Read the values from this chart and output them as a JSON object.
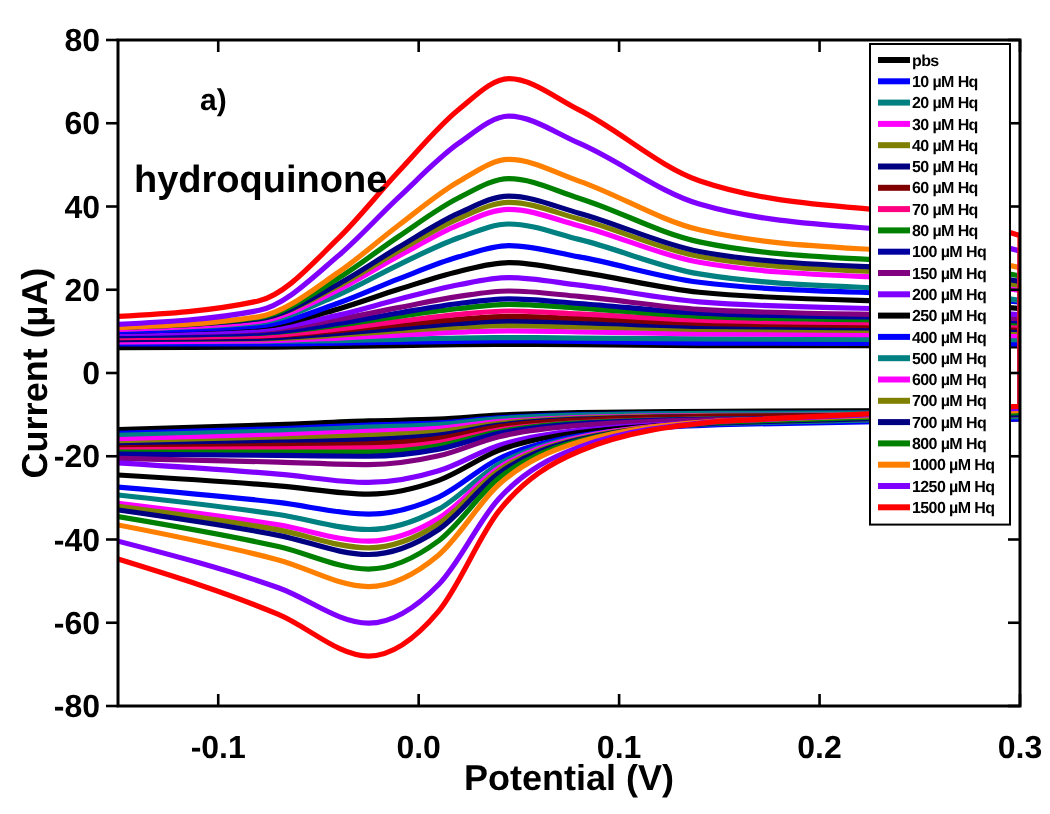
{
  "chart_data": {
    "type": "line",
    "xlabel": "Potential (V)",
    "ylabel": "Current (µA)",
    "annotations": [
      "a)",
      "hydroquinone"
    ],
    "xlim": [
      -0.15,
      0.3
    ],
    "ylim": [
      -80,
      80
    ],
    "xticks": [
      {
        "value": -0.1,
        "label": "-0.1"
      },
      {
        "value": 0,
        "label": "0.0"
      },
      {
        "value": 0.1,
        "label": "0.1"
      },
      {
        "value": 0.2,
        "label": "0.2"
      },
      {
        "value": 0.3,
        "label": "0.3"
      }
    ],
    "yticks": [
      -80,
      -60,
      -40,
      -20,
      0,
      20,
      40,
      60,
      80
    ],
    "grid": false,
    "legend": "top right",
    "marker": "none",
    "line_style": "solid",
    "x": [
      -0.15,
      -0.08,
      -0.04,
      -0.01,
      0.02,
      0.045,
      0.08,
      0.14,
      0.3,
      0.3,
      0.15,
      0.08,
      0.04,
      0.01,
      -0.025,
      -0.07,
      -0.15
    ],
    "series": [
      {
        "name": "pbs",
        "color": "#000000",
        "values": [
          6.1,
          6.2,
          6.4,
          6.6,
          6.8,
          6.9,
          6.8,
          6.6,
          6.5,
          -9,
          -9.2,
          -9.5,
          -10.1,
          -11.1,
          -11.5,
          -12.4,
          -13.6
        ]
      },
      {
        "name": "10 µM Hq",
        "color": "#0000ff",
        "values": [
          7,
          7,
          7.2,
          7.4,
          7.6,
          7.7,
          7.6,
          7.2,
          7,
          -9.5,
          -9.7,
          -10,
          -10.8,
          -12,
          -12.5,
          -13.4,
          -14.5
        ]
      },
      {
        "name": "20 µM Hq",
        "color": "#008080",
        "values": [
          7.5,
          7.6,
          7.8,
          8.1,
          8.4,
          8.5,
          8.4,
          8.2,
          8,
          -9.5,
          -9.7,
          -10.1,
          -11,
          -12.4,
          -13,
          -13.9,
          -15
        ]
      },
      {
        "name": "30 µM Hq",
        "color": "#ff00ff",
        "values": [
          7.5,
          7.7,
          8.4,
          9.1,
          9.8,
          10.1,
          9.9,
          9.4,
          9,
          -10,
          -10.2,
          -10.7,
          -11.7,
          -13.3,
          -14,
          -14.9,
          -16
        ]
      },
      {
        "name": "40 µM Hq",
        "color": "#808000",
        "values": [
          8,
          8.2,
          9.1,
          10.1,
          11,
          11.4,
          11.1,
          10.5,
          10,
          -10,
          -10.3,
          -10.9,
          -12.1,
          -14.1,
          -15,
          -15.9,
          -17
        ]
      },
      {
        "name": "50 µM Hq",
        "color": "#000080",
        "values": [
          8,
          8.3,
          9.5,
          10.7,
          11.9,
          12.5,
          12.1,
          11.2,
          10.5,
          -10,
          -10.4,
          -11.1,
          -12.5,
          -14.9,
          -16,
          -16.6,
          -17.5
        ]
      },
      {
        "name": "60 µM Hq",
        "color": "#800000",
        "values": [
          8.5,
          8.8,
          10.2,
          11.6,
          12.9,
          13.6,
          13.1,
          11.9,
          11,
          -10,
          -10.4,
          -11.3,
          -12.9,
          -15.7,
          -17,
          -17.4,
          -18
        ]
      },
      {
        "name": "70 µM Hq",
        "color": "#ff0080",
        "values": [
          8.5,
          8.9,
          10.6,
          12.4,
          14.1,
          14.9,
          14.2,
          12.7,
          11.5,
          -10.5,
          -11,
          -11.9,
          -13.7,
          -16.7,
          -18,
          -18.2,
          -18.5
        ]
      },
      {
        "name": "80 µM Hq",
        "color": "#008000",
        "values": [
          9,
          9.5,
          11.5,
          13.6,
          15.5,
          16.5,
          15.6,
          13.6,
          12,
          -10.5,
          -11,
          -12,
          -14.1,
          -17.5,
          -19,
          -19,
          -19
        ]
      },
      {
        "name": "100 µM Hq",
        "color": "#0000a0",
        "values": [
          9,
          9.6,
          11.9,
          14.4,
          16.7,
          17.8,
          16.7,
          14.4,
          12.5,
          -10.5,
          -11.1,
          -12.2,
          -14.5,
          -18.3,
          -20,
          -19.8,
          -19.5
        ]
      },
      {
        "name": "150 µM Hq",
        "color": "#800080",
        "values": [
          9.5,
          10.2,
          12.9,
          15.7,
          18.4,
          19.7,
          18.4,
          15.3,
          13,
          -10.5,
          -11.2,
          -12.6,
          -15.3,
          -19.9,
          -22,
          -21.4,
          -20.5
        ]
      },
      {
        "name": "200 µM Hq",
        "color": "#8000ff",
        "values": [
          9.5,
          10.4,
          13.9,
          17.7,
          21.2,
          22.9,
          21.1,
          17.1,
          14,
          -11,
          -11.9,
          -13.8,
          -17.4,
          -23.5,
          -26.3,
          -24.3,
          -21.6
        ]
      },
      {
        "name": "250 µM Hq",
        "color": "#000000",
        "values": [
          10,
          11.1,
          15.4,
          20.1,
          24.4,
          26.5,
          24.3,
          19.4,
          15.5,
          -11,
          -12.1,
          -14.3,
          -18.6,
          -25.8,
          -29.1,
          -27.1,
          -24.5
        ]
      },
      {
        "name": "400 µM Hq",
        "color": "#0000ff",
        "values": [
          10,
          11.3,
          16.8,
          22.6,
          27.9,
          30.6,
          27.9,
          21.8,
          17,
          -11,
          -12.4,
          -15.1,
          -20.6,
          -29.8,
          -33.9,
          -31.1,
          -27.4
        ]
      },
      {
        "name": "500 µM Hq",
        "color": "#008080",
        "values": [
          10.5,
          12.1,
          18.8,
          26,
          32.5,
          35.8,
          32.1,
          23.8,
          17.4,
          -10.5,
          -12.1,
          -15.4,
          -21.9,
          -32.7,
          -37.6,
          -34,
          -29.3
        ]
      },
      {
        "name": "600 µM Hq",
        "color": "#ff00ff",
        "values": [
          10.5,
          12.4,
          20,
          28.1,
          35.6,
          39.3,
          35.4,
          26.6,
          19.8,
          -10,
          -11.8,
          -15.5,
          -22.8,
          -34.9,
          -40.4,
          -36.5,
          -31.3
        ]
      },
      {
        "name": "700 µM Hq",
        "color": "#808000",
        "values": [
          11,
          13,
          20.9,
          29.3,
          37.1,
          41,
          37,
          28,
          21,
          -10,
          -11.9,
          -15.8,
          -23.4,
          -36.2,
          -42,
          -37.7,
          -32
        ]
      },
      {
        "name": "700 µM Hq",
        "color": "#000080",
        "values": [
          11,
          13,
          21.4,
          30.2,
          38.4,
          42.5,
          38.4,
          29.2,
          22,
          -10,
          -12,
          -16,
          -24.1,
          -37.6,
          -43.6,
          -39,
          -32.9
        ]
      },
      {
        "name": "800 µM Hq",
        "color": "#008000",
        "values": [
          11,
          13.3,
          22.8,
          32.8,
          42.1,
          46.7,
          42,
          31.5,
          23.3,
          -9.5,
          -11.8,
          -16.3,
          -25.3,
          -40.3,
          -47.1,
          -41.7,
          -34.5
        ]
      },
      {
        "name": "1000 µM Hq",
        "color": "#ff8000",
        "values": [
          10.9,
          13.5,
          24.2,
          35.5,
          46,
          51.3,
          46.1,
          34.4,
          25.3,
          -9,
          -11.5,
          -16.6,
          -26.8,
          -43.7,
          -51.3,
          -44.9,
          -36.5
        ]
      },
      {
        "name": "1250 µM Hq",
        "color": "#8000ff",
        "values": [
          11.7,
          15,
          28.2,
          42.2,
          55.2,
          61.7,
          55.2,
          40.6,
          29.3,
          -8.5,
          -11.6,
          -17.8,
          -30.2,
          -50.8,
          -60.1,
          -51.6,
          -40.4
        ]
      },
      {
        "name": "1500 µM Hq",
        "color": "#ff0000",
        "values": [
          13.6,
          17.3,
          32.4,
          48.4,
          63.3,
          70.7,
          63.2,
          46.2,
          33,
          -8,
          -11.6,
          -18.8,
          -33.2,
          -57.2,
          -68,
          -58,
          -44.7
        ]
      }
    ]
  }
}
